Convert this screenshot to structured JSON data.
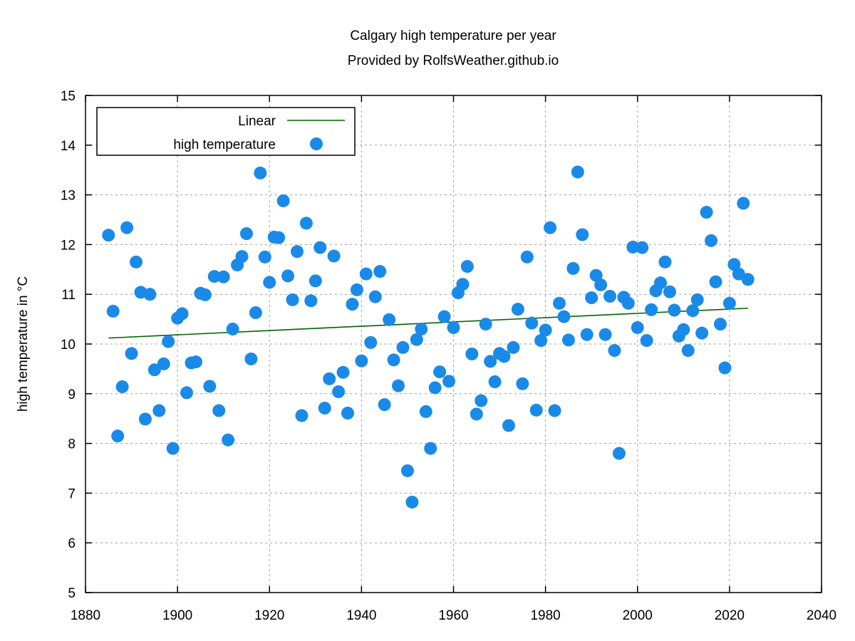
{
  "chart_data": {
    "type": "scatter",
    "title": "Calgary high temperature per year",
    "subtitle": "Provided by RolfsWeather.github.io",
    "xlabel": "",
    "ylabel": "high temperature in °C",
    "xlim": [
      1880,
      2040
    ],
    "ylim": [
      5,
      15
    ],
    "xticks": [
      1880,
      1900,
      1920,
      1940,
      1960,
      1980,
      2000,
      2020,
      2040
    ],
    "yticks": [
      5,
      6,
      7,
      8,
      9,
      10,
      11,
      12,
      13,
      14,
      15
    ],
    "grid": true,
    "legend_position": "top-left",
    "series": [
      {
        "name": "Linear",
        "kind": "line",
        "color": "#006400",
        "x": [
          1885,
          2024
        ],
        "y": [
          10.12,
          10.72
        ]
      },
      {
        "name": "high temperature",
        "kind": "points",
        "color": "#1a8ae8",
        "x": [
          1885,
          1886,
          1887,
          1888,
          1889,
          1890,
          1891,
          1892,
          1893,
          1894,
          1895,
          1896,
          1897,
          1898,
          1899,
          1900,
          1901,
          1902,
          1903,
          1904,
          1905,
          1906,
          1907,
          1908,
          1909,
          1910,
          1911,
          1912,
          1913,
          1914,
          1915,
          1916,
          1917,
          1918,
          1919,
          1920,
          1921,
          1922,
          1923,
          1924,
          1925,
          1926,
          1927,
          1928,
          1929,
          1930,
          1931,
          1932,
          1933,
          1934,
          1935,
          1936,
          1937,
          1938,
          1939,
          1940,
          1941,
          1942,
          1943,
          1944,
          1945,
          1946,
          1947,
          1948,
          1949,
          1950,
          1951,
          1952,
          1953,
          1954,
          1955,
          1956,
          1957,
          1958,
          1959,
          1960,
          1961,
          1962,
          1963,
          1964,
          1965,
          1966,
          1967,
          1968,
          1969,
          1970,
          1971,
          1972,
          1973,
          1974,
          1975,
          1976,
          1977,
          1978,
          1979,
          1980,
          1981,
          1982,
          1983,
          1984,
          1985,
          1986,
          1987,
          1988,
          1989,
          1990,
          1991,
          1992,
          1993,
          1994,
          1995,
          1996,
          1997,
          1998,
          1999,
          2000,
          2001,
          2002,
          2003,
          2004,
          2005,
          2006,
          2007,
          2008,
          2009,
          2010,
          2011,
          2012,
          2013,
          2014,
          2015,
          2016,
          2017,
          2018,
          2019,
          2020,
          2021,
          2022,
          2023,
          2024
        ],
        "y": [
          12.19,
          10.66,
          8.15,
          9.14,
          12.34,
          9.81,
          11.65,
          11.04,
          8.49,
          11.0,
          9.48,
          8.66,
          9.6,
          10.05,
          7.9,
          10.52,
          10.61,
          9.02,
          9.62,
          9.64,
          11.02,
          10.99,
          9.15,
          11.36,
          8.66,
          11.35,
          8.07,
          10.3,
          11.59,
          11.76,
          12.22,
          9.7,
          10.63,
          13.44,
          11.75,
          11.24,
          12.15,
          12.14,
          12.88,
          11.37,
          10.89,
          11.86,
          8.56,
          12.43,
          10.87,
          11.27,
          11.94,
          8.71,
          9.3,
          11.77,
          9.04,
          9.43,
          8.61,
          10.8,
          11.09,
          9.66,
          11.41,
          10.03,
          10.95,
          11.46,
          8.78,
          10.49,
          9.68,
          9.16,
          9.93,
          7.45,
          6.82,
          10.09,
          10.3,
          8.64,
          7.9,
          9.12,
          9.44,
          10.55,
          9.25,
          10.33,
          11.03,
          11.2,
          11.56,
          9.8,
          8.59,
          8.86,
          10.4,
          9.65,
          9.24,
          9.81,
          9.75,
          8.36,
          9.93,
          10.7,
          9.2,
          11.75,
          10.42,
          8.67,
          10.07,
          10.28,
          12.34,
          8.66,
          10.82,
          10.55,
          10.08,
          11.52,
          13.46,
          12.2,
          10.19,
          10.93,
          11.38,
          11.19,
          10.19,
          10.96,
          9.87,
          7.8,
          10.94,
          10.82,
          11.95,
          10.33,
          11.94,
          10.07,
          10.69,
          11.07,
          11.23,
          11.65,
          11.05,
          10.68,
          10.16,
          10.29,
          9.87,
          10.67,
          10.89,
          10.22,
          12.65,
          12.08,
          11.25,
          10.4,
          9.52,
          10.82,
          11.6,
          11.41,
          12.83,
          11.3
        ]
      }
    ]
  }
}
